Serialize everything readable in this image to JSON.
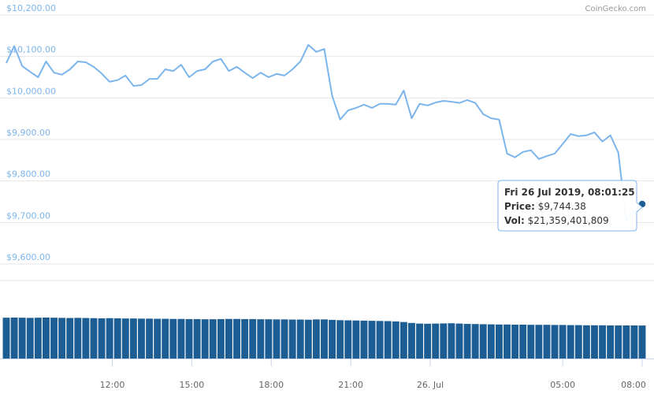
{
  "chart_data": [
    {
      "type": "line",
      "watermark": "CoinGecko.com",
      "x": [
        8,
        8.3,
        8.6,
        8.9,
        9.2,
        9.5,
        9.8,
        10.1,
        10.4,
        10.7,
        11,
        11.3,
        11.6,
        11.9,
        12.2,
        12.5,
        12.8,
        13.1,
        13.4,
        13.7,
        14,
        14.3,
        14.6,
        14.9,
        15.2,
        15.5,
        15.8,
        16.1,
        16.4,
        16.7,
        17,
        17.3,
        17.6,
        17.9,
        18.2,
        18.5,
        18.8,
        19.1,
        19.4,
        19.7,
        20,
        20.3,
        20.6,
        20.9,
        21.2,
        21.5,
        21.8,
        22.1,
        22.4,
        22.7,
        23,
        23.3,
        23.6,
        23.9,
        24.2,
        24.5,
        24.8,
        25.1,
        25.4,
        25.7,
        26,
        26.3,
        26.6,
        26.9,
        27.2,
        27.5,
        27.8,
        28.1,
        28.4,
        28.7,
        29,
        29.3,
        29.6,
        29.9,
        30.2,
        30.5,
        30.8,
        31.1,
        31.4,
        31.7,
        32
      ],
      "series": [
        {
          "name": "Price",
          "color": "#7cb5ec",
          "values": [
            10084,
            10125,
            10077,
            10063,
            10050,
            10088,
            10061,
            10056,
            10069,
            10088,
            10086,
            10075,
            10059,
            10039,
            10043,
            10054,
            10029,
            10031,
            10046,
            10046,
            10069,
            10065,
            10080,
            10050,
            10065,
            10069,
            10088,
            10094,
            10065,
            10075,
            10061,
            10048,
            10061,
            10050,
            10058,
            10054,
            10069,
            10088,
            10128,
            10111,
            10118,
            10005,
            9948,
            9970,
            9976,
            9984,
            9976,
            9986,
            9986,
            9984,
            10018,
            9951,
            9986,
            9982,
            9989,
            9993,
            9991,
            9988,
            9995,
            9988,
            9961,
            9951,
            9948,
            9866,
            9857,
            9870,
            9874,
            9853,
            9860,
            9866,
            9889,
            9913,
            9908,
            9910,
            9917,
            9895,
            9910,
            9868,
            9705,
            9728,
            9744.38
          ]
        }
      ],
      "xlim": [
        8,
        32
      ],
      "xticks": [
        {
          "value": 12,
          "label": "12:00"
        },
        {
          "value": 15,
          "label": "15:00"
        },
        {
          "value": 18,
          "label": "18:00"
        },
        {
          "value": 21,
          "label": "21:00"
        },
        {
          "value": 24,
          "label": "26. Jul"
        },
        {
          "value": 29,
          "label": "05:00"
        },
        {
          "value": 32,
          "label": "08:00"
        }
      ],
      "ylim": [
        9600,
        10200
      ],
      "yticks": [
        {
          "value": 9600,
          "label": "$9,600.00"
        },
        {
          "value": 9700,
          "label": "$9,700.00"
        },
        {
          "value": 9800,
          "label": "$9,800.00"
        },
        {
          "value": 9900,
          "label": "$9,900.00"
        },
        {
          "value": 10000,
          "label": "$10,000.00"
        },
        {
          "value": 10100,
          "label": "$10,100.00"
        },
        {
          "value": 10200,
          "label": "$10,200.00"
        }
      ],
      "grid": true,
      "tooltip": {
        "date": "Fri 26 Jul 2019, 08:01:25",
        "price_label": "Price:",
        "price": "$9,744.38",
        "vol_label": "Vol:",
        "vol": "$21,359,401,809"
      }
    },
    {
      "type": "bar",
      "x": [
        8,
        8.3,
        8.6,
        8.9,
        9.2,
        9.5,
        9.8,
        10.1,
        10.4,
        10.7,
        11,
        11.3,
        11.6,
        11.9,
        12.2,
        12.5,
        12.8,
        13.1,
        13.4,
        13.7,
        14,
        14.3,
        14.6,
        14.9,
        15.2,
        15.5,
        15.8,
        16.1,
        16.4,
        16.7,
        17,
        17.3,
        17.6,
        17.9,
        18.2,
        18.5,
        18.8,
        19.1,
        19.4,
        19.7,
        20,
        20.3,
        20.6,
        20.9,
        21.2,
        21.5,
        21.8,
        22.1,
        22.4,
        22.7,
        23,
        23.3,
        23.6,
        23.9,
        24.2,
        24.5,
        24.8,
        25.1,
        25.4,
        25.7,
        26,
        26.3,
        26.6,
        26.9,
        27.2,
        27.5,
        27.8,
        28.1,
        28.4,
        28.7,
        29,
        29.3,
        29.6,
        29.9,
        30.2,
        30.5,
        30.8,
        31.1,
        31.4,
        31.7,
        32
      ],
      "series": [
        {
          "name": "Vol",
          "color": "#1c5d93",
          "values": [
            26400000000,
            26500000000,
            26400000000,
            26300000000,
            26400000000,
            26500000000,
            26400000000,
            26300000000,
            26200000000,
            26300000000,
            26200000000,
            26100000000,
            26000000000,
            26100000000,
            26000000000,
            25900000000,
            25900000000,
            25800000000,
            25800000000,
            25700000000,
            25700000000,
            25600000000,
            25600000000,
            25500000000,
            25500000000,
            25400000000,
            25400000000,
            25500000000,
            25600000000,
            25600000000,
            25500000000,
            25500000000,
            25400000000,
            25400000000,
            25300000000,
            25300000000,
            25200000000,
            25200000000,
            25100000000,
            25300000000,
            25300000000,
            25000000000,
            24800000000,
            24700000000,
            24600000000,
            24500000000,
            24400000000,
            24300000000,
            24200000000,
            24000000000,
            23600000000,
            23000000000,
            22600000000,
            22500000000,
            22600000000,
            22700000000,
            22800000000,
            22600000000,
            22400000000,
            22300000000,
            22200000000,
            22100000000,
            22000000000,
            22000000000,
            21900000000,
            21900000000,
            21800000000,
            21800000000,
            21800000000,
            21700000000,
            21700000000,
            21600000000,
            21600000000,
            21500000000,
            21500000000,
            21500000000,
            21400000000,
            21400000000,
            21400000000,
            21400000000,
            21359401809
          ]
        }
      ],
      "xlim": [
        8,
        32
      ],
      "ylim": [
        0,
        27000000000
      ]
    }
  ]
}
